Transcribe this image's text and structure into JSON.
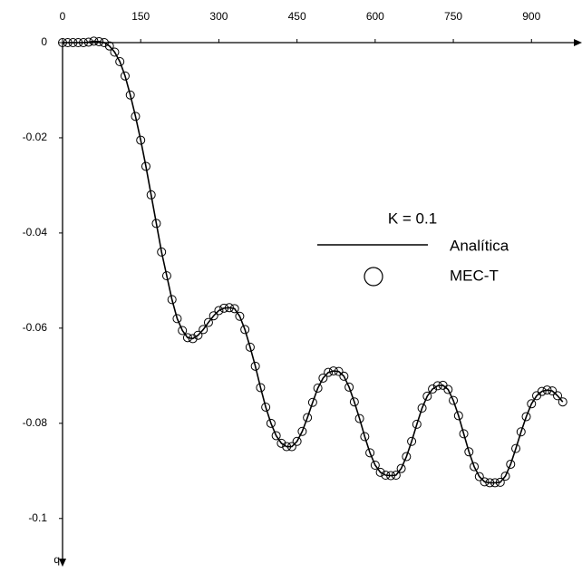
{
  "chart_data": {
    "type": "line",
    "legend_title": "K = 0.1",
    "ylabel": "q",
    "xlim": [
      0,
      990
    ],
    "ylim": [
      0,
      -0.109
    ],
    "xticks": [
      0,
      150,
      300,
      450,
      600,
      750,
      900
    ],
    "yticks": [
      0,
      -0.02,
      -0.04,
      -0.06,
      -0.08,
      -0.1
    ],
    "x": [
      0,
      10,
      20,
      30,
      40,
      50,
      60,
      70,
      80,
      90,
      100,
      110,
      120,
      130,
      140,
      150,
      160,
      170,
      180,
      190,
      200,
      210,
      220,
      230,
      240,
      250,
      260,
      270,
      280,
      290,
      300,
      310,
      320,
      330,
      340,
      350,
      360,
      370,
      380,
      390,
      400,
      410,
      420,
      430,
      440,
      450,
      460,
      470,
      480,
      490,
      500,
      510,
      520,
      530,
      540,
      550,
      560,
      570,
      580,
      590,
      600,
      610,
      620,
      630,
      640,
      650,
      660,
      670,
      680,
      690,
      700,
      710,
      720,
      730,
      740,
      750,
      760,
      770,
      780,
      790,
      800,
      810,
      820,
      830,
      840,
      850,
      860,
      870,
      880,
      890,
      900,
      910,
      920,
      930,
      940,
      950,
      960
    ],
    "series": [
      {
        "name": "Analítica",
        "mode": "line",
        "color": "#000000",
        "values": [
          0,
          0,
          0,
          0,
          0,
          0.0001,
          0.0003,
          0.0002,
          0,
          -0.0007,
          -0.002,
          -0.004,
          -0.007,
          -0.011,
          -0.0155,
          -0.0205,
          -0.026,
          -0.032,
          -0.038,
          -0.044,
          -0.049,
          -0.054,
          -0.058,
          -0.0605,
          -0.062,
          -0.0622,
          -0.0615,
          -0.0603,
          -0.0588,
          -0.0574,
          -0.0563,
          -0.0558,
          -0.0557,
          -0.0559,
          -0.0575,
          -0.0603,
          -0.064,
          -0.068,
          -0.0725,
          -0.0766,
          -0.08,
          -0.0826,
          -0.0842,
          -0.0849,
          -0.0849,
          -0.0838,
          -0.0817,
          -0.0788,
          -0.0756,
          -0.0726,
          -0.0705,
          -0.0693,
          -0.069,
          -0.0691,
          -0.0701,
          -0.0724,
          -0.0755,
          -0.079,
          -0.0828,
          -0.0862,
          -0.0888,
          -0.0903,
          -0.0909,
          -0.091,
          -0.0909,
          -0.0895,
          -0.087,
          -0.0838,
          -0.0802,
          -0.0768,
          -0.0743,
          -0.0728,
          -0.0721,
          -0.072,
          -0.0729,
          -0.0752,
          -0.0784,
          -0.0822,
          -0.086,
          -0.0891,
          -0.0912,
          -0.0923,
          -0.0925,
          -0.0925,
          -0.0924,
          -0.0911,
          -0.0886,
          -0.0853,
          -0.0818,
          -0.0786,
          -0.0759,
          -0.0742,
          -0.0733,
          -0.073,
          -0.0732,
          -0.0742,
          -0.0755
        ]
      },
      {
        "name": "MEC-T",
        "mode": "marker",
        "color": "#000000",
        "values": [
          0,
          0,
          0,
          0,
          0,
          0.0001,
          0.0003,
          0.0002,
          0,
          -0.0007,
          -0.002,
          -0.004,
          -0.007,
          -0.011,
          -0.0155,
          -0.0205,
          -0.026,
          -0.032,
          -0.038,
          -0.044,
          -0.049,
          -0.054,
          -0.058,
          -0.0605,
          -0.062,
          -0.0622,
          -0.0615,
          -0.0603,
          -0.0588,
          -0.0574,
          -0.0563,
          -0.0558,
          -0.0557,
          -0.0559,
          -0.0575,
          -0.0603,
          -0.064,
          -0.068,
          -0.0725,
          -0.0766,
          -0.08,
          -0.0826,
          -0.0842,
          -0.0849,
          -0.0849,
          -0.0838,
          -0.0817,
          -0.0788,
          -0.0756,
          -0.0726,
          -0.0705,
          -0.0693,
          -0.069,
          -0.0691,
          -0.0701,
          -0.0724,
          -0.0755,
          -0.079,
          -0.0828,
          -0.0862,
          -0.0888,
          -0.0903,
          -0.0909,
          -0.091,
          -0.0909,
          -0.0895,
          -0.087,
          -0.0838,
          -0.0802,
          -0.0768,
          -0.0743,
          -0.0728,
          -0.0721,
          -0.072,
          -0.0729,
          -0.0752,
          -0.0784,
          -0.0822,
          -0.086,
          -0.0891,
          -0.0912,
          -0.0923,
          -0.0925,
          -0.0925,
          -0.0924,
          -0.0911,
          -0.0886,
          -0.0853,
          -0.0818,
          -0.0786,
          -0.0759,
          -0.0742,
          -0.0733,
          -0.073,
          -0.0732,
          -0.0742,
          -0.0755
        ]
      }
    ]
  }
}
